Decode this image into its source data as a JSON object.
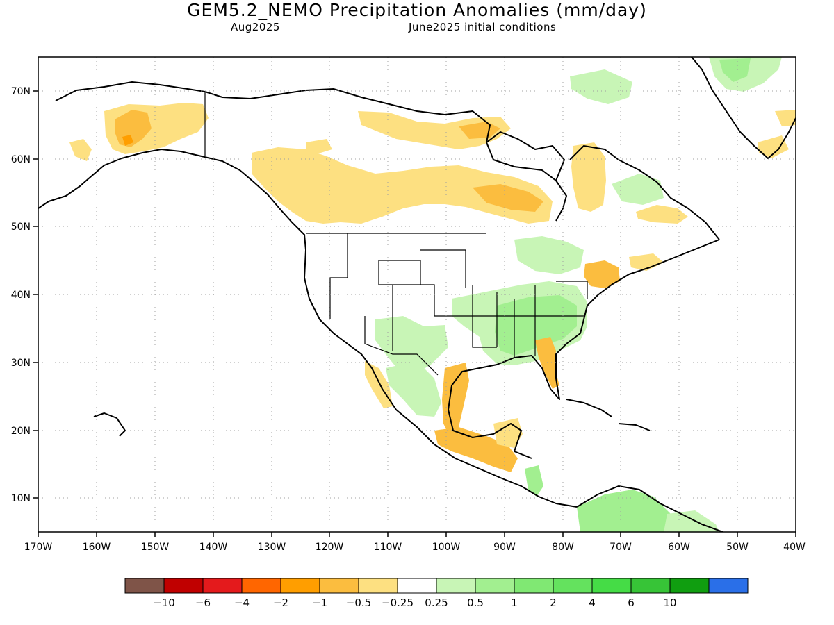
{
  "header": {
    "title": "GEM5.2_NEMO Precipitation Anomalies (mm/day)",
    "valid_month": "Aug2025",
    "init_conditions": "June2025 initial conditions"
  },
  "map": {
    "lon_labels": [
      "170W",
      "160W",
      "150W",
      "140W",
      "130W",
      "120W",
      "110W",
      "100W",
      "90W",
      "80W",
      "70W",
      "60W",
      "50W",
      "40W"
    ],
    "lat_labels": [
      "70N",
      "60N",
      "50N",
      "40N",
      "30N",
      "20N",
      "10N"
    ]
  },
  "colorbar": {
    "colors": [
      "#7f5448",
      "#c00000",
      "#e41a1c",
      "#ff6600",
      "#ff9e00",
      "#fbbd3f",
      "#fde081",
      "#ffffff",
      "#c8f5b6",
      "#a2ef90",
      "#80e873",
      "#64e25e",
      "#45dc46",
      "#37c437",
      "#109e10",
      "#2a6fe8"
    ],
    "labels": [
      "−10",
      "−6",
      "−4",
      "−2",
      "−1",
      "−0.5",
      "−0.25",
      "0.25",
      "0.5",
      "1",
      "2",
      "4",
      "6",
      "10"
    ]
  },
  "palette": {
    "dry_weak": "#fde081",
    "dry_mod": "#fbbd3f",
    "dry_strong": "#ff9e00",
    "wet_weak": "#c8f5b6",
    "wet_mod": "#a2ef90",
    "wet_strong": "#80e873"
  }
}
